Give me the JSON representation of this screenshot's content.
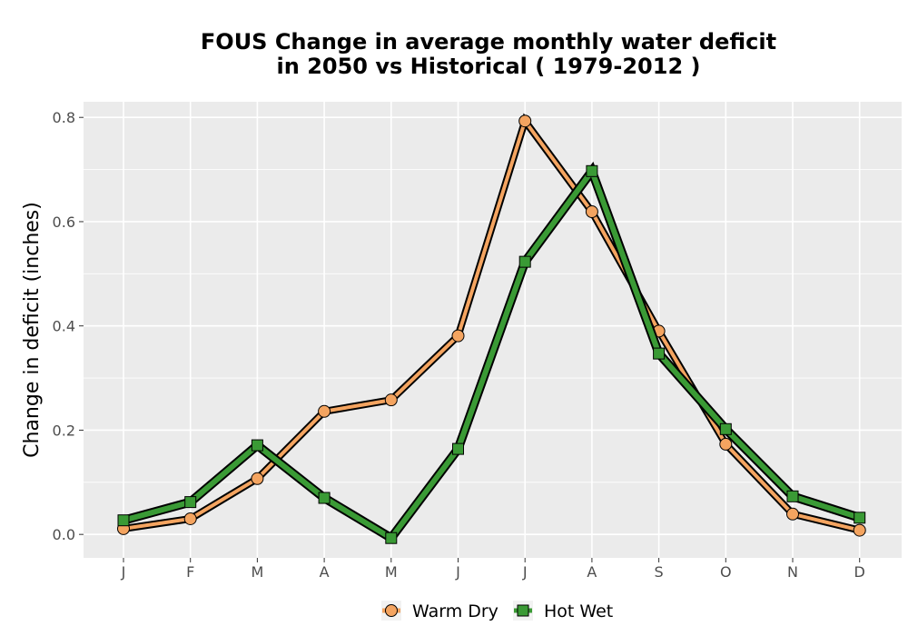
{
  "chart_data": {
    "type": "line",
    "title_lines": [
      "FOUS  Change in average monthly water deficit",
      "in 2050 vs Historical ( 1979-2012 )"
    ],
    "xlabel": "",
    "ylabel": "Change in deficit (inches)",
    "categories": [
      "J",
      "F",
      "M",
      "A",
      "M",
      "J",
      "J",
      "A",
      "S",
      "O",
      "N",
      "D"
    ],
    "ylim": [
      -0.045,
      0.83
    ],
    "yticks": [
      0.0,
      0.2,
      0.4,
      0.6,
      0.8
    ],
    "ytick_labels": [
      "0.0",
      "0.2",
      "0.4",
      "0.6",
      "0.8"
    ],
    "grid": true,
    "legend_position": "bottom",
    "series": [
      {
        "name": "Warm Dry",
        "marker": "circle",
        "color": "#F4A460",
        "values": [
          0.011,
          0.03,
          0.107,
          0.236,
          0.258,
          0.381,
          0.793,
          0.619,
          0.39,
          0.173,
          0.039,
          0.008
        ]
      },
      {
        "name": "Hot Wet",
        "marker": "square",
        "color": "#3A9A35",
        "values": [
          0.027,
          0.062,
          0.171,
          0.07,
          -0.007,
          0.164,
          0.523,
          0.697,
          0.347,
          0.202,
          0.073,
          0.032
        ]
      }
    ]
  }
}
